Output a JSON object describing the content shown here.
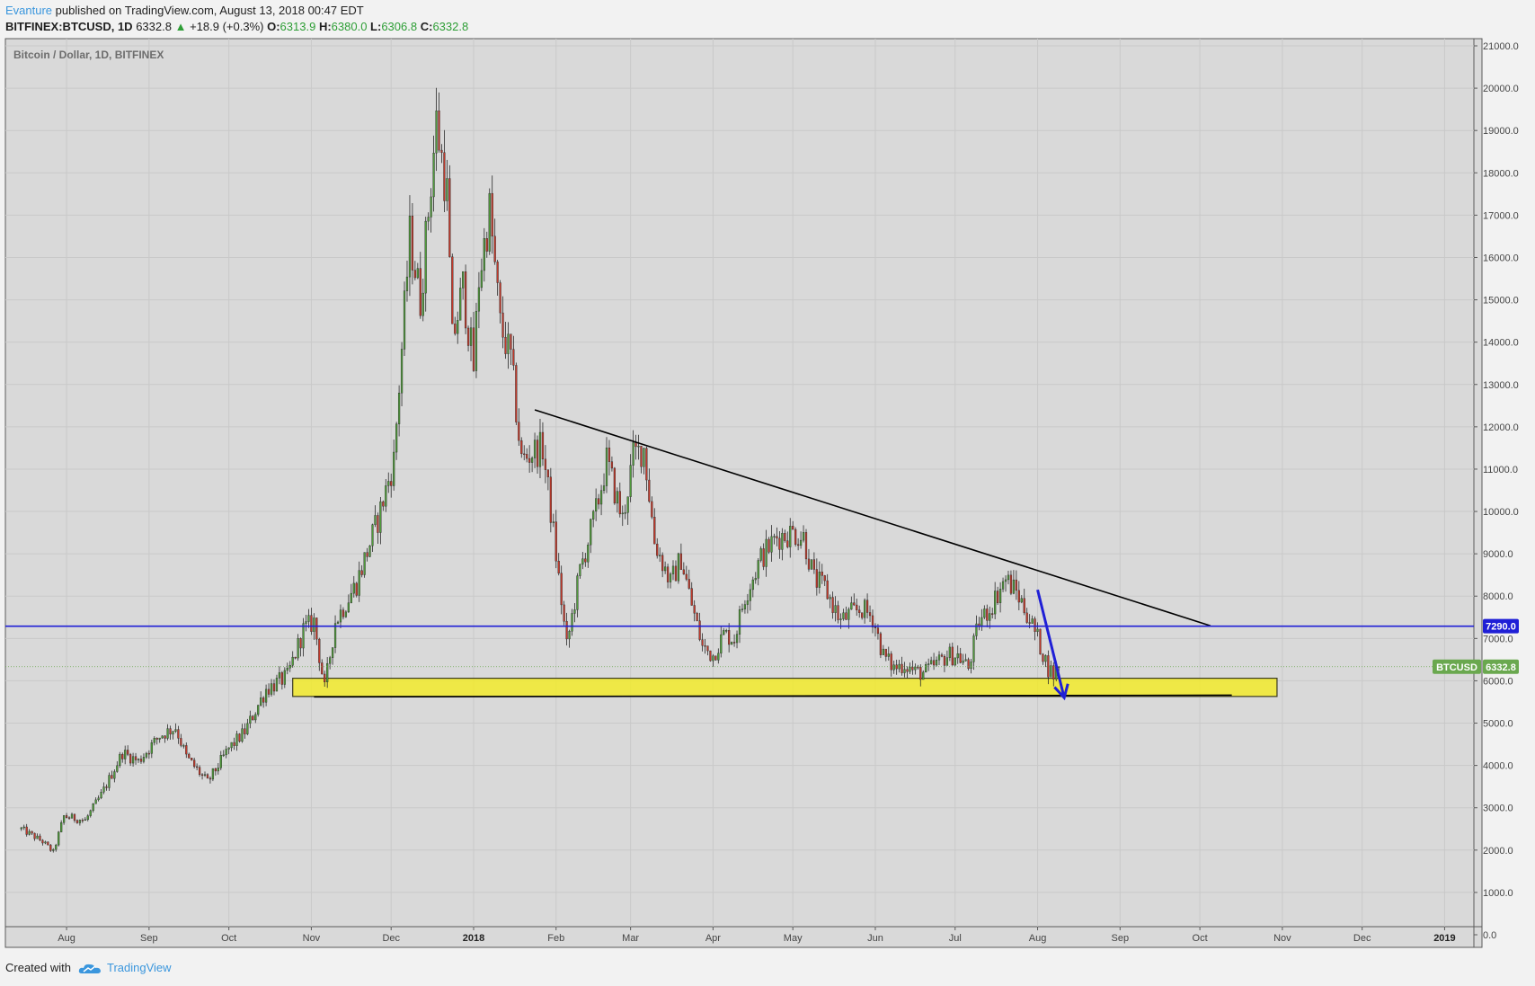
{
  "header": {
    "author": "Evanture",
    "published_text": "published on TradingView.com, August 13, 2018 00:47 EDT",
    "symbol_line": "BITFINEX:BTCUSD, 1D",
    "last": "6332.8",
    "change": "+18.9 (+0.3%)",
    "o_label": "O:",
    "o_value": "6313.9",
    "h_label": "H:",
    "h_value": "6380.0",
    "l_label": "L:",
    "l_value": "6306.8",
    "c_label": "C:",
    "c_value": "6332.8"
  },
  "footer": {
    "created_with": "Created with",
    "brand": "TradingView"
  },
  "colors": {
    "background": "#d9d9d9",
    "up_candle": "#4f9a3a",
    "down_candle": "#c0392b",
    "resistance_line": "#1f1fd6",
    "support_zone": "#f2ea2c",
    "trend_line": "#000000",
    "arrow": "#1f1fd6",
    "price_label": "#6aa84f"
  },
  "chart_data": {
    "type": "candlestick",
    "title": "Bitcoin / Dollar, 1D, BITFINEX",
    "xlabel": "",
    "ylabel": "",
    "ylim": [
      0,
      21000
    ],
    "y_ticks": [
      "0.0",
      "1000.0",
      "2000.0",
      "3000.0",
      "4000.0",
      "5000.0",
      "6000.0",
      "7000.0",
      "8000.0",
      "9000.0",
      "10000.0",
      "11000.0",
      "12000.0",
      "13000.0",
      "14000.0",
      "15000.0",
      "16000.0",
      "17000.0",
      "18000.0",
      "19000.0",
      "20000.0",
      "21000.0"
    ],
    "x_ticks": [
      {
        "label": "Aug",
        "day": 17,
        "bold": false
      },
      {
        "label": "Sep",
        "day": 48,
        "bold": false
      },
      {
        "label": "Oct",
        "day": 78,
        "bold": false
      },
      {
        "label": "Nov",
        "day": 109,
        "bold": false
      },
      {
        "label": "Dec",
        "day": 139,
        "bold": false
      },
      {
        "label": "2018",
        "day": 170,
        "bold": true
      },
      {
        "label": "Feb",
        "day": 201,
        "bold": false
      },
      {
        "label": "Mar",
        "day": 229,
        "bold": false
      },
      {
        "label": "Apr",
        "day": 260,
        "bold": false
      },
      {
        "label": "May",
        "day": 290,
        "bold": false
      },
      {
        "label": "Jun",
        "day": 321,
        "bold": false
      },
      {
        "label": "Jul",
        "day": 351,
        "bold": false
      },
      {
        "label": "Aug",
        "day": 382,
        "bold": false
      },
      {
        "label": "Sep",
        "day": 413,
        "bold": false
      },
      {
        "label": "Oct",
        "day": 443,
        "bold": false
      },
      {
        "label": "Nov",
        "day": 474,
        "bold": false
      },
      {
        "label": "Dec",
        "day": 504,
        "bold": false
      },
      {
        "label": "2019",
        "day": 535,
        "bold": true
      }
    ],
    "x_range_days": [
      -6,
      546
    ],
    "price_anchors": [
      [
        0,
        2500
      ],
      [
        8,
        2200
      ],
      [
        12,
        1950
      ],
      [
        16,
        2800
      ],
      [
        24,
        2700
      ],
      [
        30,
        3300
      ],
      [
        38,
        4300
      ],
      [
        44,
        4100
      ],
      [
        52,
        4700
      ],
      [
        58,
        4900
      ],
      [
        62,
        4200
      ],
      [
        70,
        3600
      ],
      [
        78,
        4400
      ],
      [
        84,
        4800
      ],
      [
        92,
        5800
      ],
      [
        100,
        6100
      ],
      [
        106,
        7200
      ],
      [
        110,
        7400
      ],
      [
        114,
        5800
      ],
      [
        118,
        7400
      ],
      [
        126,
        8300
      ],
      [
        134,
        9800
      ],
      [
        140,
        11200
      ],
      [
        146,
        16500
      ],
      [
        150,
        15000
      ],
      [
        156,
        19200
      ],
      [
        160,
        17500
      ],
      [
        162,
        14000
      ],
      [
        166,
        15300
      ],
      [
        170,
        13400
      ],
      [
        172,
        15500
      ],
      [
        176,
        17100
      ],
      [
        180,
        14400
      ],
      [
        184,
        13600
      ],
      [
        188,
        11200
      ],
      [
        192,
        11400
      ],
      [
        196,
        11500
      ],
      [
        200,
        9500
      ],
      [
        205,
        6800
      ],
      [
        210,
        8600
      ],
      [
        216,
        10000
      ],
      [
        220,
        11200
      ],
      [
        226,
        9800
      ],
      [
        230,
        11300
      ],
      [
        234,
        11500
      ],
      [
        238,
        9300
      ],
      [
        244,
        8300
      ],
      [
        248,
        8900
      ],
      [
        252,
        7800
      ],
      [
        256,
        6800
      ],
      [
        260,
        6600
      ],
      [
        264,
        7100
      ],
      [
        268,
        7000
      ],
      [
        272,
        8000
      ],
      [
        278,
        8900
      ],
      [
        284,
        9400
      ],
      [
        290,
        9500
      ],
      [
        294,
        9400
      ],
      [
        298,
        8400
      ],
      [
        302,
        8200
      ],
      [
        308,
        7400
      ],
      [
        312,
        7600
      ],
      [
        316,
        7700
      ],
      [
        320,
        7500
      ],
      [
        324,
        6600
      ],
      [
        328,
        6300
      ],
      [
        332,
        6400
      ],
      [
        336,
        6200
      ],
      [
        340,
        6200
      ],
      [
        344,
        6400
      ],
      [
        348,
        6600
      ],
      [
        352,
        6600
      ],
      [
        356,
        6300
      ],
      [
        360,
        7400
      ],
      [
        364,
        7700
      ],
      [
        368,
        8200
      ],
      [
        370,
        8400
      ],
      [
        374,
        8100
      ],
      [
        378,
        7600
      ],
      [
        382,
        7000
      ],
      [
        386,
        6300
      ],
      [
        388,
        6150
      ],
      [
        390,
        6332.8
      ]
    ],
    "annotations": {
      "resistance_level": 7290.0,
      "resistance_label": "7290.0",
      "trend_line": [
        [
          193,
          12400
        ],
        [
          447,
          7300
        ]
      ],
      "support_zone": {
        "day_from": 102,
        "day_to": 472,
        "price_low": 5630,
        "price_high": 6060
      },
      "support_line": [
        [
          110,
          5620
        ],
        [
          455,
          5660
        ]
      ],
      "arrow": {
        "from": [
          382,
          8150
        ],
        "to": [
          392,
          5600
        ]
      },
      "last_price_symbol": "BTCUSD",
      "last_price": "6332.8"
    }
  }
}
